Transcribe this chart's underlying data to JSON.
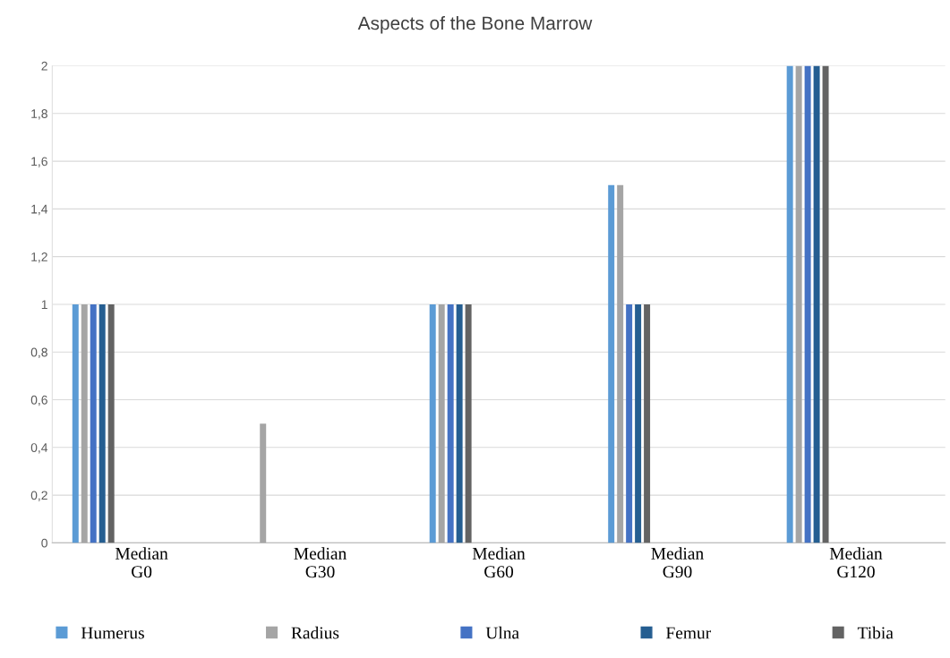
{
  "chart_data": {
    "type": "bar",
    "title": "Aspects of the Bone Marrow",
    "categories": [
      "Median\nG0",
      "Median\nG30",
      "Median\nG60",
      "Median\nG90",
      "Median\nG120"
    ],
    "series": [
      {
        "name": "Humerus",
        "color": "#5b9bd5",
        "values": [
          1,
          0,
          1,
          1.5,
          2
        ]
      },
      {
        "name": "Radius",
        "color": "#a5a5a5",
        "values": [
          1,
          0.5,
          1,
          1.5,
          2
        ]
      },
      {
        "name": "Ulna",
        "color": "#4472c4",
        "values": [
          1,
          0,
          1,
          1,
          2
        ]
      },
      {
        "name": "Femur",
        "color": "#255e91",
        "values": [
          1,
          0,
          1,
          1,
          2
        ]
      },
      {
        "name": "Tibia",
        "color": "#636363",
        "values": [
          1,
          0,
          1,
          1,
          2
        ]
      }
    ],
    "ylim": [
      0,
      2
    ],
    "yticks": [
      0,
      {
        "value": 0.2,
        "label": "0,2"
      },
      {
        "value": 0.4,
        "label": "0,4"
      },
      {
        "value": 0.6,
        "label": "0,6"
      },
      {
        "value": 0.8,
        "label": "0,8"
      },
      1,
      {
        "value": 1.2,
        "label": "1,2"
      },
      {
        "value": 1.4,
        "label": "1,4"
      },
      {
        "value": 1.6,
        "label": "1,6"
      },
      {
        "value": 1.8,
        "label": "1,8"
      },
      2
    ],
    "grid": "y",
    "legend": "bottom"
  }
}
